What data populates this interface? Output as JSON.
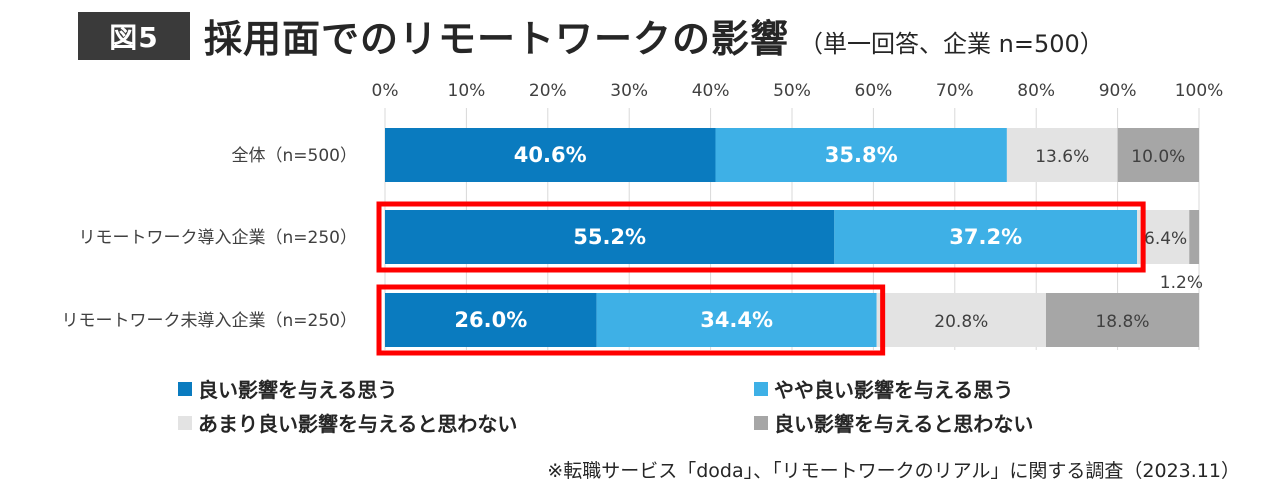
{
  "figure_label": "図5",
  "title": "採用面でのリモートワークの影響",
  "subtitle": "（単一回答、企業 n=500）",
  "source": "※転職サービス「doda」、「リモートワークのリアル」に関する調査（2023.11）",
  "colors": {
    "good": "#0a7bbf",
    "somewhat_good": "#3eb0e6",
    "not_really": "#e3e3e3",
    "not_good": "#a6a6a6",
    "highlight": "#ff0000"
  },
  "chart_data": {
    "type": "bar",
    "orientation": "horizontal",
    "stacked": true,
    "percent": true,
    "xlim": [
      0,
      100
    ],
    "x_ticks": [
      "0%",
      "10%",
      "20%",
      "30%",
      "40%",
      "50%",
      "60%",
      "70%",
      "80%",
      "90%",
      "100%"
    ],
    "categories": [
      "全体（n=500）",
      "リモートワーク導入企業（n=250）",
      "リモートワーク未導入企業（n=250）"
    ],
    "series": [
      {
        "name": "良い影響を与える思う",
        "values": [
          40.6,
          55.2,
          26.0
        ],
        "labels": [
          "40.6%",
          "55.2%",
          "26.0%"
        ]
      },
      {
        "name": "やや良い影響を与える思う",
        "values": [
          35.8,
          37.2,
          34.4
        ],
        "labels": [
          "35.8%",
          "37.2%",
          "34.4%"
        ]
      },
      {
        "name": "あまり良い影響を与えると思わない",
        "values": [
          13.6,
          6.4,
          20.8
        ],
        "labels": [
          "13.6%",
          "6.4%",
          "20.8%"
        ]
      },
      {
        "name": "良い影響を与えると思わない",
        "values": [
          10.0,
          1.2,
          18.8
        ],
        "labels": [
          "10.0%",
          "1.2%",
          "18.8%"
        ]
      }
    ],
    "highlighted_rows": [
      1,
      2
    ],
    "grid": true,
    "legend_position": "bottom"
  }
}
